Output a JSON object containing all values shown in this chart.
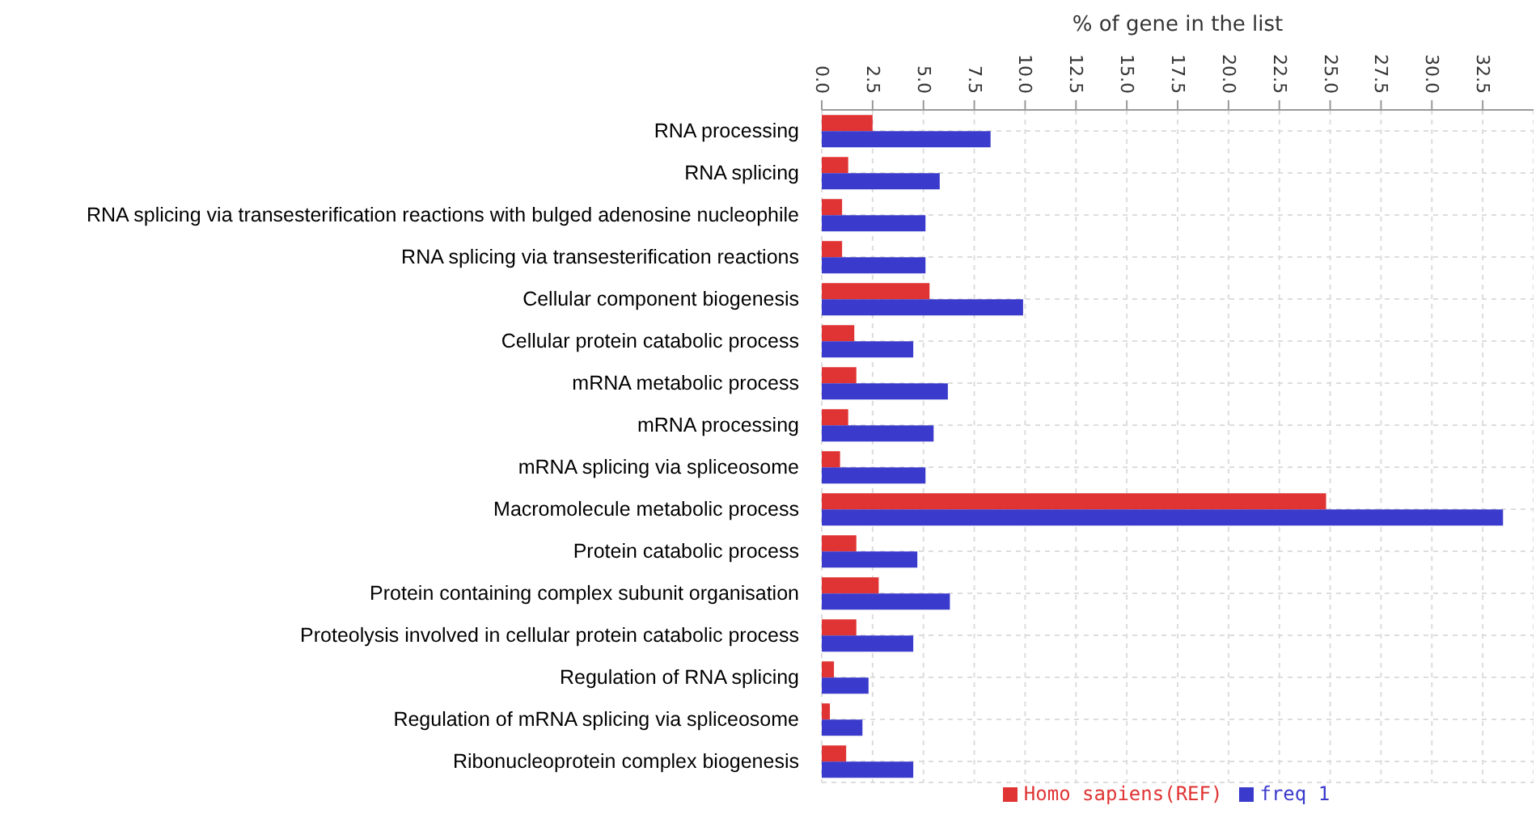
{
  "chart_data": {
    "type": "bar",
    "orientation": "horizontal",
    "xlabel": "% of gene in the list",
    "categories": [
      "RNA processing",
      "RNA splicing",
      "RNA splicing via transesterification reactions with bulged adenosine nucleophile",
      "RNA splicing via  transesterification reactions",
      "Cellular component biogenesis",
      "Cellular protein catabolic process",
      "mRNA metabolic process",
      "mRNA processing",
      "mRNA splicing via spliceosome",
      "Macromolecule metabolic process",
      "Protein catabolic process",
      "Protein containing complex subunit organisation",
      "Proteolysis involved in cellular protein catabolic process",
      "Regulation of RNA splicing",
      "Regulation of mRNA splicing via spliceosome",
      "Ribonucleoprotein complex biogenesis"
    ],
    "series": [
      {
        "name": "Homo sapiens(REF)",
        "color": "#e03434",
        "values": [
          2.5,
          1.3,
          1.0,
          1.0,
          5.3,
          1.6,
          1.7,
          1.3,
          0.9,
          24.8,
          1.7,
          2.8,
          1.7,
          0.6,
          0.4,
          1.2
        ]
      },
      {
        "name": "freq 1",
        "color": "#3a3acc",
        "values": [
          8.3,
          5.8,
          5.1,
          5.1,
          9.9,
          4.5,
          6.2,
          5.5,
          5.1,
          33.5,
          4.7,
          6.3,
          4.5,
          2.3,
          2.0,
          4.5
        ]
      }
    ],
    "xlim": [
      0,
      35
    ],
    "xticks": [
      {
        "value": 0,
        "label": "0.0"
      },
      {
        "value": 2.5,
        "label": "2.5"
      },
      {
        "value": 5,
        "label": "5.0"
      },
      {
        "value": 7.5,
        "label": "7.5"
      },
      {
        "value": 10,
        "label": "10.0"
      },
      {
        "value": 12.5,
        "label": "12.5"
      },
      {
        "value": 15,
        "label": "15.0"
      },
      {
        "value": 17.5,
        "label": "17.5"
      },
      {
        "value": 20,
        "label": "20.0"
      },
      {
        "value": 22.5,
        "label": "22.5"
      },
      {
        "value": 25,
        "label": "25.0"
      },
      {
        "value": 27.5,
        "label": "27.5"
      },
      {
        "value": 30,
        "label": "30.0"
      },
      {
        "value": 32.5,
        "label": "32.5"
      }
    ],
    "grid": true,
    "legend": "bottom"
  }
}
